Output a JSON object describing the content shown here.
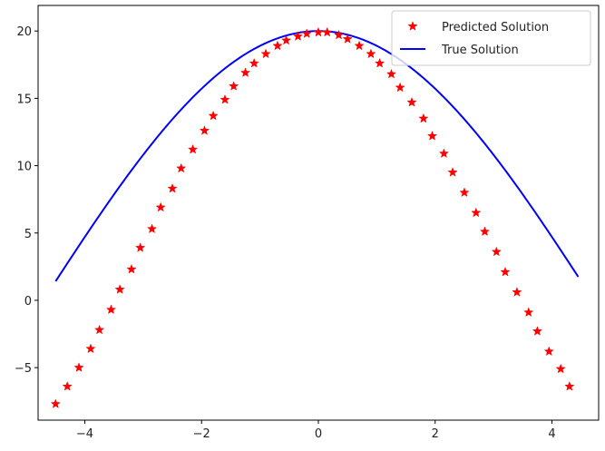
{
  "chart_data": {
    "type": "line",
    "title": "",
    "xlabel": "",
    "ylabel": "",
    "xlim": [
      -4.8,
      4.8
    ],
    "ylim": [
      -8.9,
      21.9
    ],
    "grid": false,
    "legend_placement": "top-right",
    "x_ticks": [
      {
        "value": -4,
        "label": "−4"
      },
      {
        "value": -2,
        "label": "−2"
      },
      {
        "value": 0,
        "label": "0"
      },
      {
        "value": 2,
        "label": "2"
      },
      {
        "value": 4,
        "label": "4"
      }
    ],
    "y_ticks": [
      {
        "value": -5,
        "label": "−5"
      },
      {
        "value": 0,
        "label": "0"
      },
      {
        "value": 5,
        "label": "5"
      },
      {
        "value": 10,
        "label": "10"
      },
      {
        "value": 15,
        "label": "15"
      },
      {
        "value": 20,
        "label": "20"
      }
    ],
    "series": [
      {
        "name": "Predicted Solution",
        "kind": "scatter",
        "marker": "star",
        "color": "#ff0000",
        "points": [
          [
            -4.5,
            -7.7
          ],
          [
            -4.3,
            -6.4
          ],
          [
            -4.1,
            -5.0
          ],
          [
            -3.9,
            -3.6
          ],
          [
            -3.75,
            -2.2
          ],
          [
            -3.55,
            -0.7
          ],
          [
            -3.4,
            0.8
          ],
          [
            -3.2,
            2.3
          ],
          [
            -3.05,
            3.9
          ],
          [
            -2.85,
            5.3
          ],
          [
            -2.7,
            6.9
          ],
          [
            -2.5,
            8.3
          ],
          [
            -2.35,
            9.8
          ],
          [
            -2.15,
            11.2
          ],
          [
            -1.95,
            12.6
          ],
          [
            -1.8,
            13.7
          ],
          [
            -1.6,
            14.9
          ],
          [
            -1.45,
            15.9
          ],
          [
            -1.25,
            16.9
          ],
          [
            -1.1,
            17.6
          ],
          [
            -0.9,
            18.3
          ],
          [
            -0.7,
            18.9
          ],
          [
            -0.55,
            19.3
          ],
          [
            -0.35,
            19.6
          ],
          [
            -0.2,
            19.8
          ],
          [
            0.0,
            19.9
          ],
          [
            0.15,
            19.9
          ],
          [
            0.35,
            19.7
          ],
          [
            0.5,
            19.4
          ],
          [
            0.7,
            18.9
          ],
          [
            0.9,
            18.3
          ],
          [
            1.05,
            17.6
          ],
          [
            1.25,
            16.8
          ],
          [
            1.4,
            15.8
          ],
          [
            1.6,
            14.7
          ],
          [
            1.8,
            13.5
          ],
          [
            1.95,
            12.2
          ],
          [
            2.15,
            10.9
          ],
          [
            2.3,
            9.5
          ],
          [
            2.5,
            8.0
          ],
          [
            2.7,
            6.5
          ],
          [
            2.85,
            5.1
          ],
          [
            3.05,
            3.6
          ],
          [
            3.2,
            2.1
          ],
          [
            3.4,
            0.6
          ],
          [
            3.6,
            -0.9
          ],
          [
            3.75,
            -2.3
          ],
          [
            3.95,
            -3.8
          ],
          [
            4.15,
            -5.1
          ],
          [
            4.3,
            -6.4
          ]
        ]
      },
      {
        "name": "True Solution",
        "kind": "line",
        "color": "#0000ff",
        "function": "20*cos(x/3)",
        "x_range": [
          -4.5,
          4.45
        ]
      }
    ]
  }
}
